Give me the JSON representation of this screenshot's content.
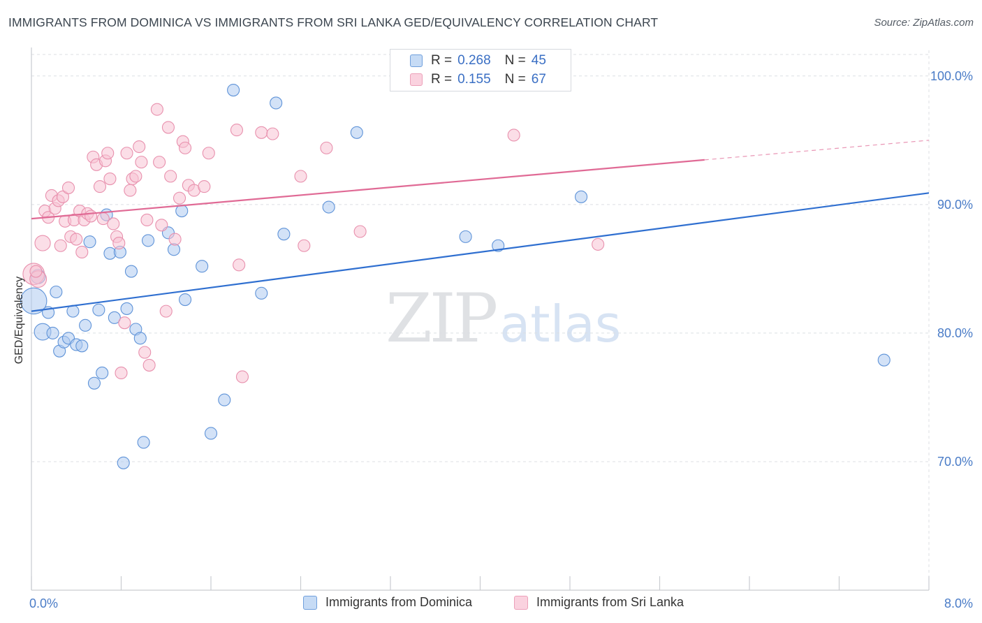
{
  "header": {
    "title": "IMMIGRANTS FROM DOMINICA VS IMMIGRANTS FROM SRI LANKA GED/EQUIVALENCY CORRELATION CHART",
    "source": "Source: ZipAtlas.com"
  },
  "watermark": {
    "zip": "ZIP",
    "atlas": "atlas"
  },
  "legend": {
    "rows": [
      {
        "r_label": "R =",
        "r_value": "0.268",
        "n_label": "N =",
        "n_value": "45"
      },
      {
        "r_label": "R =",
        "r_value": "0.155",
        "n_label": "N =",
        "n_value": "67"
      }
    ]
  },
  "colors": {
    "dominica_fill": "#aecbf0",
    "dominica_stroke": "#5f93d8",
    "dominica_line": "#2f6fd0",
    "srilanka_fill": "#f7c3d4",
    "srilanka_stroke": "#e890ad",
    "srilanka_line": "#e06a95",
    "grid": "#dcdfe3",
    "tick_text": "#4a7cc7"
  },
  "chart_data": {
    "type": "scatter",
    "title": "IMMIGRANTS FROM DOMINICA VS IMMIGRANTS FROM SRI LANKA GED/EQUIVALENCY CORRELATION CHART",
    "xlabel": "",
    "ylabel": "GED/Equivalency",
    "xlim": [
      0,
      8
    ],
    "ylim": [
      60,
      102
    ],
    "x_tick_labels": [
      "0.0%",
      "8.0%"
    ],
    "y_ticks": [
      70,
      80,
      90,
      100
    ],
    "y_tick_labels": [
      "70.0%",
      "80.0%",
      "90.0%",
      "100.0%"
    ],
    "grid": true,
    "legend_position": "bottom",
    "series": [
      {
        "name": "Immigrants from Dominica",
        "R": 0.268,
        "N": 45,
        "trend": {
          "x": [
            0,
            8
          ],
          "y": [
            81.7,
            90.9
          ],
          "dashed_from": null
        },
        "points": [
          {
            "x": 0.02,
            "y": 82.5,
            "s": 2.2
          },
          {
            "x": 0.06,
            "y": 84.4,
            "s": 1.2
          },
          {
            "x": 0.1,
            "y": 80.1,
            "s": 1.4
          },
          {
            "x": 0.15,
            "y": 81.6,
            "s": 1
          },
          {
            "x": 0.19,
            "y": 80.0,
            "s": 1
          },
          {
            "x": 0.22,
            "y": 83.2,
            "s": 1
          },
          {
            "x": 0.25,
            "y": 78.6,
            "s": 1
          },
          {
            "x": 0.29,
            "y": 79.3,
            "s": 1
          },
          {
            "x": 0.33,
            "y": 79.6,
            "s": 1
          },
          {
            "x": 0.37,
            "y": 81.7,
            "s": 1
          },
          {
            "x": 0.4,
            "y": 79.1,
            "s": 1
          },
          {
            "x": 0.45,
            "y": 79.0,
            "s": 1
          },
          {
            "x": 0.48,
            "y": 80.6,
            "s": 1
          },
          {
            "x": 0.52,
            "y": 87.1,
            "s": 1
          },
          {
            "x": 0.56,
            "y": 76.1,
            "s": 1
          },
          {
            "x": 0.6,
            "y": 81.8,
            "s": 1
          },
          {
            "x": 0.63,
            "y": 76.9,
            "s": 1
          },
          {
            "x": 0.67,
            "y": 89.2,
            "s": 1
          },
          {
            "x": 0.7,
            "y": 86.2,
            "s": 1
          },
          {
            "x": 0.74,
            "y": 81.2,
            "s": 1
          },
          {
            "x": 0.79,
            "y": 86.3,
            "s": 1
          },
          {
            "x": 0.82,
            "y": 69.9,
            "s": 1
          },
          {
            "x": 0.85,
            "y": 81.9,
            "s": 1
          },
          {
            "x": 0.89,
            "y": 84.8,
            "s": 1
          },
          {
            "x": 0.93,
            "y": 80.3,
            "s": 1
          },
          {
            "x": 0.97,
            "y": 79.6,
            "s": 1
          },
          {
            "x": 1.0,
            "y": 71.5,
            "s": 1
          },
          {
            "x": 1.04,
            "y": 87.2,
            "s": 1
          },
          {
            "x": 1.22,
            "y": 87.8,
            "s": 1
          },
          {
            "x": 1.27,
            "y": 86.5,
            "s": 1
          },
          {
            "x": 1.34,
            "y": 89.5,
            "s": 1
          },
          {
            "x": 1.37,
            "y": 82.6,
            "s": 1
          },
          {
            "x": 1.52,
            "y": 85.2,
            "s": 1
          },
          {
            "x": 1.6,
            "y": 72.2,
            "s": 1
          },
          {
            "x": 1.72,
            "y": 74.8,
            "s": 1
          },
          {
            "x": 1.8,
            "y": 98.9,
            "s": 1
          },
          {
            "x": 2.05,
            "y": 83.1,
            "s": 1
          },
          {
            "x": 2.18,
            "y": 97.9,
            "s": 1
          },
          {
            "x": 2.25,
            "y": 87.7,
            "s": 1
          },
          {
            "x": 2.65,
            "y": 89.8,
            "s": 1
          },
          {
            "x": 2.9,
            "y": 95.6,
            "s": 1
          },
          {
            "x": 3.87,
            "y": 87.5,
            "s": 1
          },
          {
            "x": 4.16,
            "y": 86.8,
            "s": 1
          },
          {
            "x": 4.9,
            "y": 90.6,
            "s": 1
          },
          {
            "x": 7.6,
            "y": 77.9,
            "s": 1
          }
        ]
      },
      {
        "name": "Immigrants from Sri Lanka",
        "R": 0.155,
        "N": 67,
        "trend": {
          "x": [
            0,
            8
          ],
          "y": [
            88.9,
            95.0
          ],
          "dashed_from": 6.0
        },
        "points": [
          {
            "x": 0.02,
            "y": 84.6,
            "s": 1.8
          },
          {
            "x": 0.06,
            "y": 84.2,
            "s": 1.4
          },
          {
            "x": 0.1,
            "y": 87.0,
            "s": 1.3
          },
          {
            "x": 0.12,
            "y": 89.5,
            "s": 1
          },
          {
            "x": 0.15,
            "y": 89.0,
            "s": 1
          },
          {
            "x": 0.18,
            "y": 90.7,
            "s": 1
          },
          {
            "x": 0.21,
            "y": 89.7,
            "s": 1
          },
          {
            "x": 0.24,
            "y": 90.3,
            "s": 1
          },
          {
            "x": 0.26,
            "y": 86.8,
            "s": 1
          },
          {
            "x": 0.28,
            "y": 90.6,
            "s": 1
          },
          {
            "x": 0.3,
            "y": 88.7,
            "s": 1
          },
          {
            "x": 0.33,
            "y": 91.3,
            "s": 1
          },
          {
            "x": 0.35,
            "y": 87.5,
            "s": 1
          },
          {
            "x": 0.38,
            "y": 88.8,
            "s": 1
          },
          {
            "x": 0.4,
            "y": 87.3,
            "s": 1
          },
          {
            "x": 0.43,
            "y": 89.5,
            "s": 1
          },
          {
            "x": 0.45,
            "y": 86.3,
            "s": 1
          },
          {
            "x": 0.47,
            "y": 88.8,
            "s": 1
          },
          {
            "x": 0.5,
            "y": 89.3,
            "s": 1
          },
          {
            "x": 0.53,
            "y": 89.1,
            "s": 1
          },
          {
            "x": 0.55,
            "y": 93.7,
            "s": 1
          },
          {
            "x": 0.58,
            "y": 93.1,
            "s": 1
          },
          {
            "x": 0.61,
            "y": 91.4,
            "s": 1
          },
          {
            "x": 0.64,
            "y": 88.9,
            "s": 1
          },
          {
            "x": 0.66,
            "y": 93.4,
            "s": 1
          },
          {
            "x": 0.68,
            "y": 94.0,
            "s": 1
          },
          {
            "x": 0.7,
            "y": 92.0,
            "s": 1
          },
          {
            "x": 0.73,
            "y": 88.5,
            "s": 1
          },
          {
            "x": 0.76,
            "y": 87.5,
            "s": 1
          },
          {
            "x": 0.78,
            "y": 87.0,
            "s": 1
          },
          {
            "x": 0.8,
            "y": 76.9,
            "s": 1
          },
          {
            "x": 0.83,
            "y": 80.8,
            "s": 1
          },
          {
            "x": 0.85,
            "y": 94.0,
            "s": 1
          },
          {
            "x": 0.88,
            "y": 91.1,
            "s": 1
          },
          {
            "x": 0.9,
            "y": 92.0,
            "s": 1
          },
          {
            "x": 0.93,
            "y": 92.2,
            "s": 1
          },
          {
            "x": 0.96,
            "y": 94.5,
            "s": 1
          },
          {
            "x": 0.98,
            "y": 93.3,
            "s": 1
          },
          {
            "x": 1.01,
            "y": 78.5,
            "s": 1
          },
          {
            "x": 1.03,
            "y": 88.8,
            "s": 1
          },
          {
            "x": 1.05,
            "y": 77.5,
            "s": 1
          },
          {
            "x": 1.12,
            "y": 97.4,
            "s": 1
          },
          {
            "x": 1.14,
            "y": 93.3,
            "s": 1
          },
          {
            "x": 1.16,
            "y": 88.4,
            "s": 1
          },
          {
            "x": 1.2,
            "y": 81.7,
            "s": 1
          },
          {
            "x": 1.22,
            "y": 96.0,
            "s": 1
          },
          {
            "x": 1.24,
            "y": 92.2,
            "s": 1
          },
          {
            "x": 1.28,
            "y": 87.3,
            "s": 1
          },
          {
            "x": 1.32,
            "y": 90.5,
            "s": 1
          },
          {
            "x": 1.35,
            "y": 94.9,
            "s": 1
          },
          {
            "x": 1.37,
            "y": 94.4,
            "s": 1
          },
          {
            "x": 1.4,
            "y": 91.5,
            "s": 1
          },
          {
            "x": 1.45,
            "y": 91.1,
            "s": 1
          },
          {
            "x": 1.54,
            "y": 91.4,
            "s": 1
          },
          {
            "x": 1.58,
            "y": 94.0,
            "s": 1
          },
          {
            "x": 1.83,
            "y": 95.8,
            "s": 1
          },
          {
            "x": 1.85,
            "y": 85.3,
            "s": 1
          },
          {
            "x": 1.88,
            "y": 76.6,
            "s": 1
          },
          {
            "x": 2.05,
            "y": 95.6,
            "s": 1
          },
          {
            "x": 2.15,
            "y": 95.5,
            "s": 1
          },
          {
            "x": 2.4,
            "y": 92.2,
            "s": 1
          },
          {
            "x": 2.43,
            "y": 86.8,
            "s": 1
          },
          {
            "x": 2.63,
            "y": 94.4,
            "s": 1
          },
          {
            "x": 2.93,
            "y": 87.9,
            "s": 1
          },
          {
            "x": 4.3,
            "y": 95.4,
            "s": 1
          },
          {
            "x": 5.05,
            "y": 86.9,
            "s": 1
          },
          {
            "x": 0.04,
            "y": 84.8,
            "s": 1
          }
        ]
      }
    ]
  },
  "bottom_legend": {
    "items": [
      {
        "label": "Immigrants from Dominica"
      },
      {
        "label": "Immigrants from Sri Lanka"
      }
    ]
  }
}
